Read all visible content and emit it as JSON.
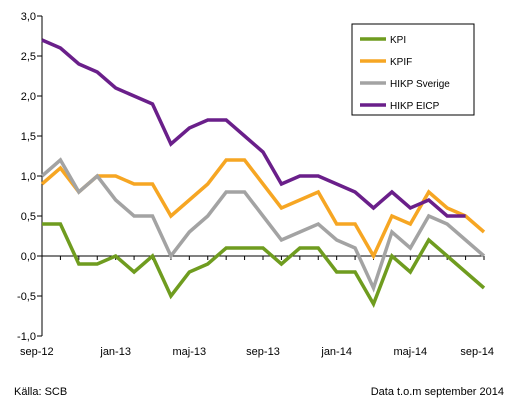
{
  "chart_data": {
    "type": "line",
    "x": [
      "sep-12",
      "okt-12",
      "nov-12",
      "dec-12",
      "jan-13",
      "feb-13",
      "mar-13",
      "apr-13",
      "maj-13",
      "jun-13",
      "jul-13",
      "aug-13",
      "sep-13",
      "okt-13",
      "nov-13",
      "dec-13",
      "jan-14",
      "feb-14",
      "mar-14",
      "apr-14",
      "maj-14",
      "jun-14",
      "jul-14",
      "aug-14",
      "sep-14"
    ],
    "xtick_labels": [
      "sep-12",
      "jan-13",
      "maj-13",
      "sep-13",
      "jan-14",
      "maj-14",
      "sep-14"
    ],
    "yticks": [
      "-1,0",
      "-0,5",
      "0,0",
      "0,5",
      "1,0",
      "1,5",
      "2,0",
      "2,5",
      "3,0"
    ],
    "ylim": [
      -1.0,
      3.0
    ],
    "title": "",
    "xlabel": "",
    "ylabel": "",
    "grid": false,
    "legend_position": "top-right",
    "series": [
      {
        "name": "KPI",
        "color": "#6f9c1f",
        "values": [
          0.4,
          0.4,
          -0.1,
          -0.1,
          0.0,
          -0.2,
          0.0,
          -0.5,
          -0.2,
          -0.1,
          0.1,
          0.1,
          0.1,
          -0.1,
          0.1,
          0.1,
          -0.2,
          -0.2,
          -0.6,
          0.0,
          -0.2,
          0.2,
          0.0,
          -0.2,
          -0.4
        ]
      },
      {
        "name": "KPIF",
        "color": "#f6a623",
        "values": [
          0.9,
          1.1,
          0.8,
          1.0,
          1.0,
          0.9,
          0.9,
          0.5,
          0.7,
          0.9,
          1.2,
          1.2,
          0.9,
          0.6,
          0.7,
          0.8,
          0.4,
          0.4,
          0.0,
          0.5,
          0.4,
          0.8,
          0.6,
          0.5,
          0.3
        ]
      },
      {
        "name": "HIKP Sverige",
        "color": "#a3a3a3",
        "values": [
          1.0,
          1.2,
          0.8,
          1.0,
          0.7,
          0.5,
          0.5,
          0.0,
          0.3,
          0.5,
          0.8,
          0.8,
          0.5,
          0.2,
          0.3,
          0.4,
          0.2,
          0.1,
          -0.4,
          0.3,
          0.1,
          0.5,
          0.4,
          0.2,
          0.0
        ]
      },
      {
        "name": "HIKP EICP",
        "color": "#6a1f8a",
        "values": [
          2.7,
          2.6,
          2.4,
          2.3,
          2.1,
          2.0,
          1.9,
          1.4,
          1.6,
          1.7,
          1.7,
          1.5,
          1.3,
          0.9,
          1.0,
          1.0,
          0.9,
          0.8,
          0.6,
          0.8,
          0.6,
          0.7,
          0.5,
          0.5,
          null
        ]
      }
    ]
  },
  "footer": {
    "source": "Källa: SCB",
    "data_note": "Data t.o.m september 2014"
  }
}
